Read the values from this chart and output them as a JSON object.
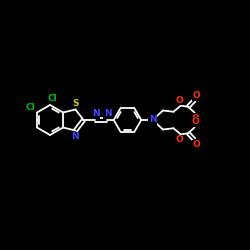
{
  "bg_color": "#000000",
  "bond_color": "#ffffff",
  "bond_width": 1.3,
  "N_color": "#4444ff",
  "S_color": "#cccc00",
  "O_color": "#ff3300",
  "Cl_color": "#00bb00",
  "font_size": 6.5,
  "xlim": [
    0,
    10
  ],
  "ylim": [
    0,
    10
  ],
  "figsize": [
    2.5,
    2.5
  ],
  "dpi": 100
}
